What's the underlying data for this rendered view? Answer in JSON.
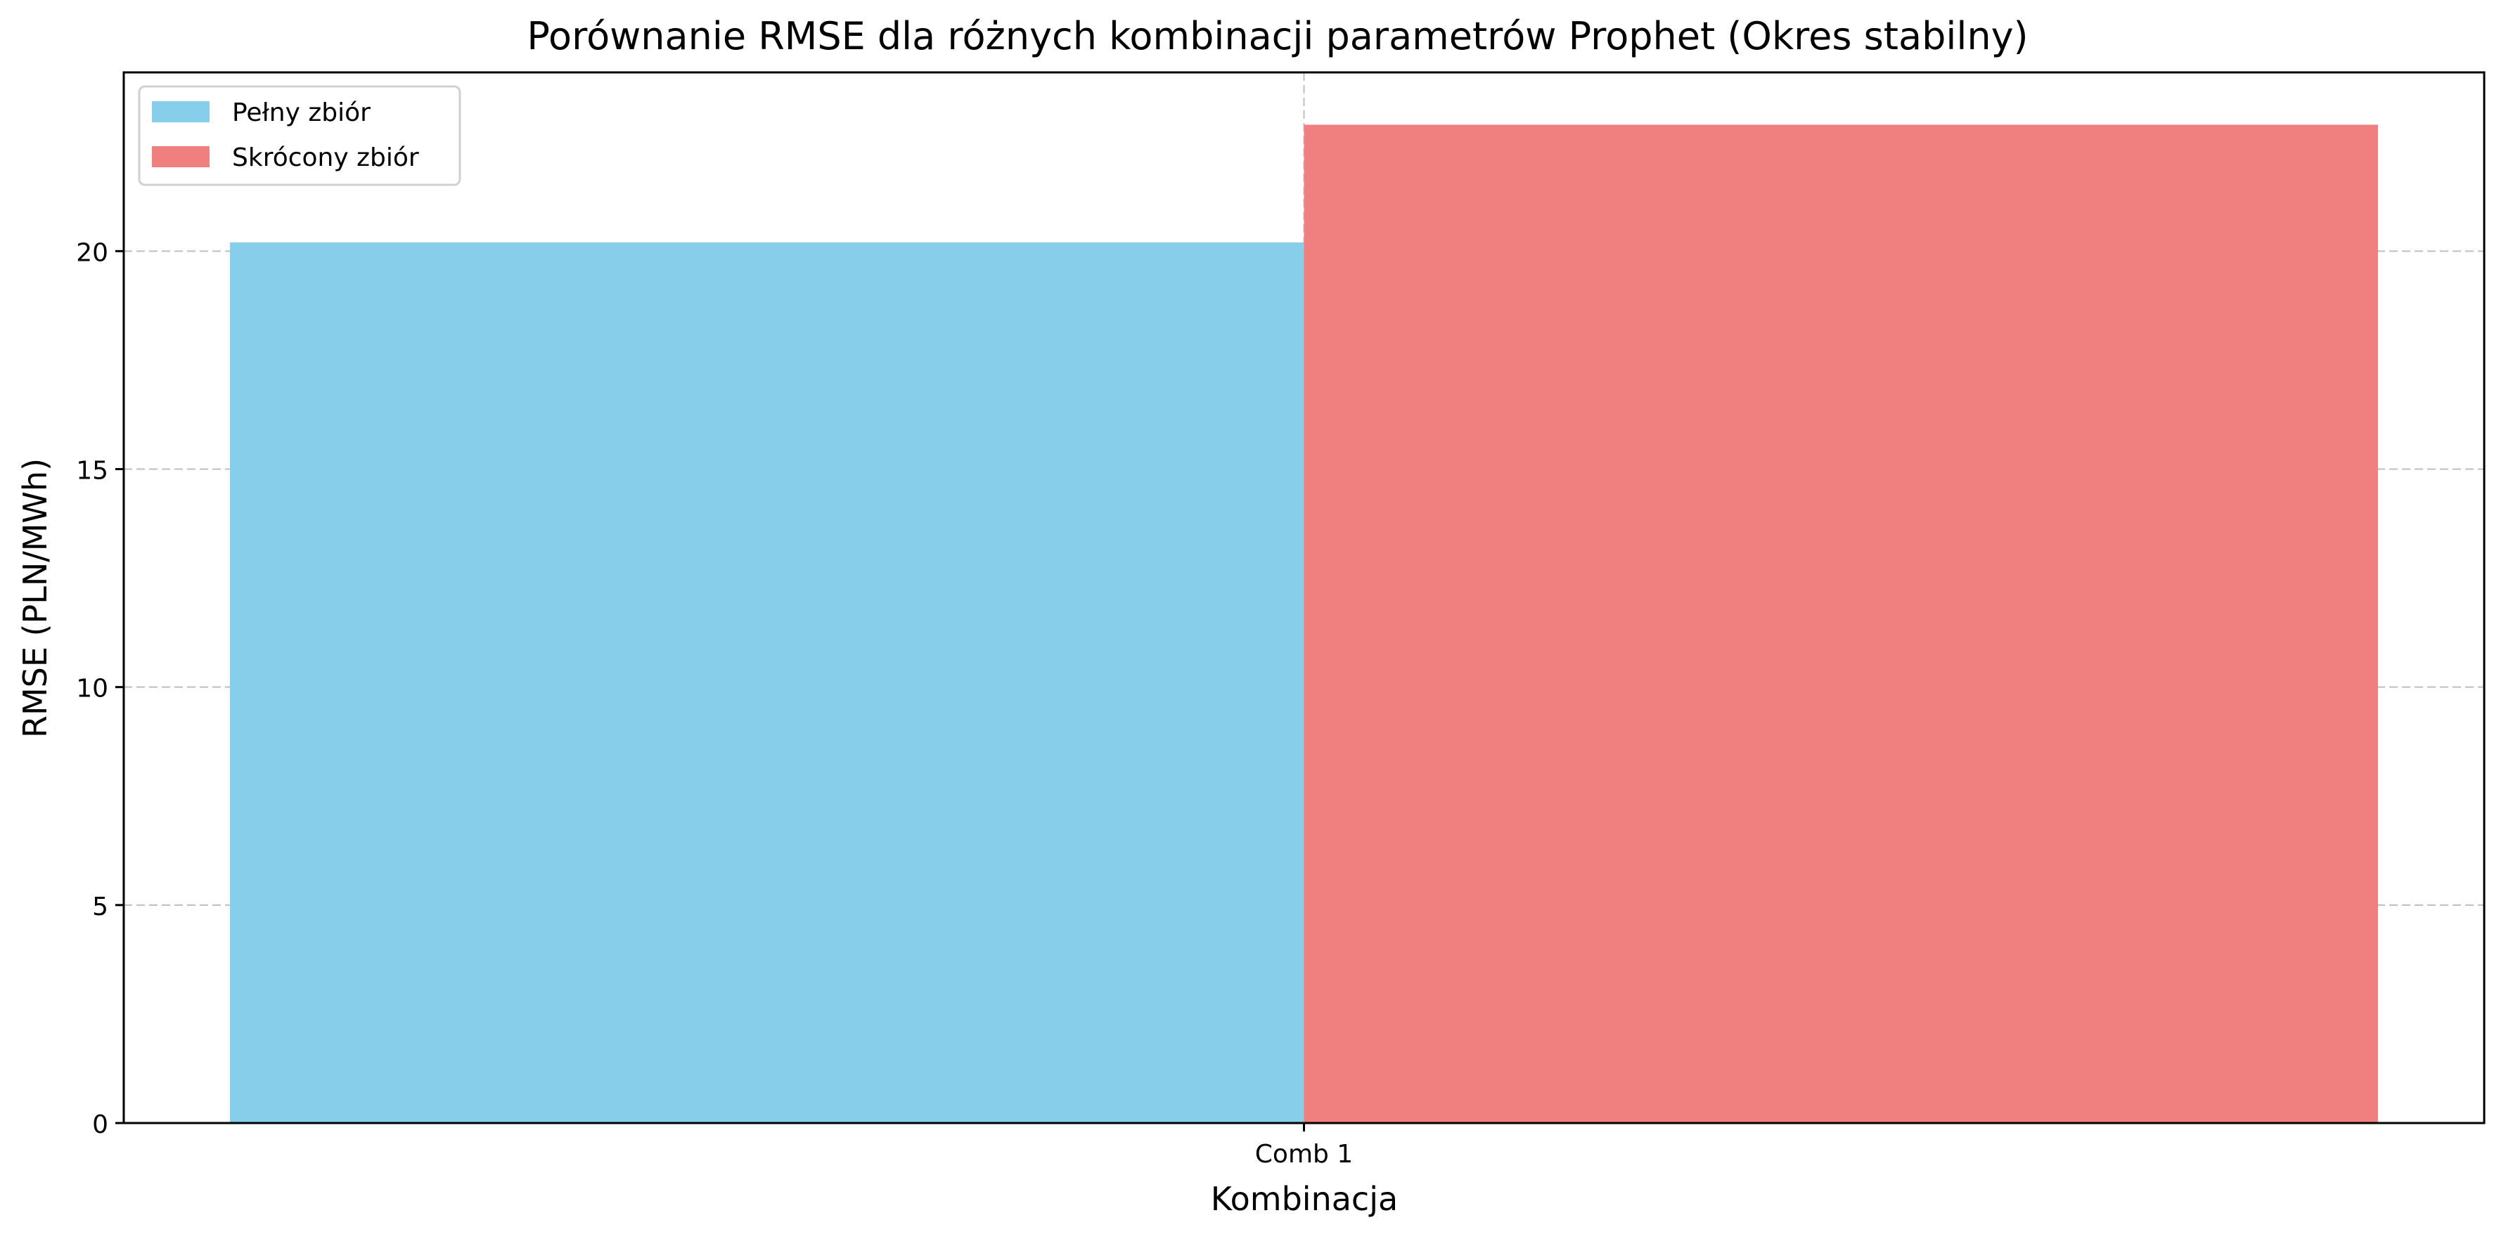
{
  "chart_data": {
    "type": "bar",
    "title": "Porównanie RMSE dla różnych kombinacji parametrów Prophet (Okres stabilny)",
    "xlabel": "Kombinacja",
    "ylabel": "RMSE (PLN/MWh)",
    "categories": [
      "Comb 1"
    ],
    "series": [
      {
        "name": "Pełny zbiór",
        "color": "#87CEEB",
        "values": [
          20.2
        ]
      },
      {
        "name": "Skrócony zbiór",
        "color": "#F08080",
        "values": [
          22.9
        ]
      }
    ],
    "ylim": [
      0,
      24.1
    ],
    "yticks": [
      0,
      5,
      10,
      15,
      20
    ],
    "ytick_labels": [
      "0",
      "5",
      "10",
      "15",
      "20"
    ],
    "grid": true,
    "legend_position": "upper left"
  }
}
